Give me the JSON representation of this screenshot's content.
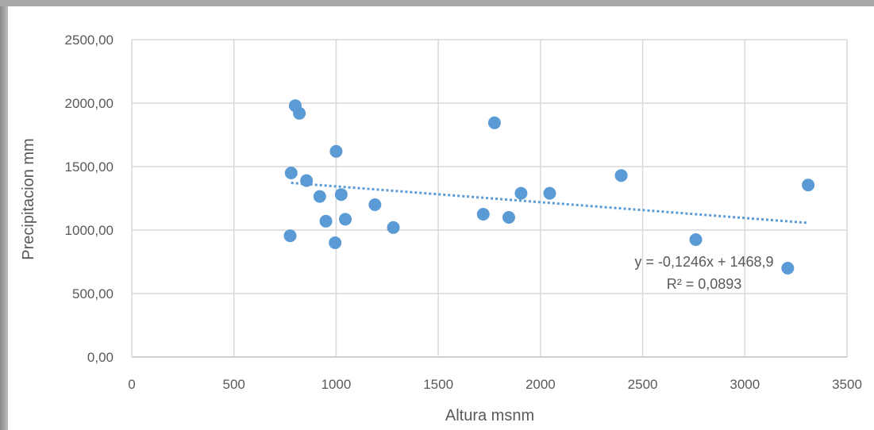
{
  "chart_data": {
    "type": "scatter",
    "xlabel": "Altura msnm",
    "ylabel": "Precipitacion mm",
    "xlim": [
      0,
      3500
    ],
    "ylim": [
      0,
      2500
    ],
    "x_ticks": [
      "0",
      "500",
      "1000",
      "1500",
      "2000",
      "2500",
      "3000",
      "3500"
    ],
    "y_ticks": [
      "0,00",
      "500,00",
      "1000,00",
      "1500,00",
      "2000,00",
      "2500,00"
    ],
    "grid": true,
    "marker_color": "#5b9bd5",
    "trendline": {
      "type": "linear",
      "slope": -0.1246,
      "intercept": 1468.9,
      "x_range": [
        780,
        3310
      ],
      "style": "dotted",
      "color": "#5b9bd5",
      "equation_label": "y = -0,1246x + 1468,9",
      "r2_label": "R² = 0,0893"
    },
    "points": [
      {
        "x": 800,
        "y": 1980
      },
      {
        "x": 820,
        "y": 1920
      },
      {
        "x": 1000,
        "y": 1620
      },
      {
        "x": 780,
        "y": 1450
      },
      {
        "x": 855,
        "y": 1390
      },
      {
        "x": 920,
        "y": 1265
      },
      {
        "x": 1025,
        "y": 1280
      },
      {
        "x": 950,
        "y": 1070
      },
      {
        "x": 1045,
        "y": 1085
      },
      {
        "x": 1190,
        "y": 1200
      },
      {
        "x": 775,
        "y": 955
      },
      {
        "x": 995,
        "y": 900
      },
      {
        "x": 1280,
        "y": 1020
      },
      {
        "x": 1775,
        "y": 1845
      },
      {
        "x": 1720,
        "y": 1125
      },
      {
        "x": 1845,
        "y": 1100
      },
      {
        "x": 1905,
        "y": 1290
      },
      {
        "x": 2045,
        "y": 1290
      },
      {
        "x": 2395,
        "y": 1430
      },
      {
        "x": 2760,
        "y": 925
      },
      {
        "x": 3210,
        "y": 700
      },
      {
        "x": 3310,
        "y": 1355
      }
    ]
  }
}
